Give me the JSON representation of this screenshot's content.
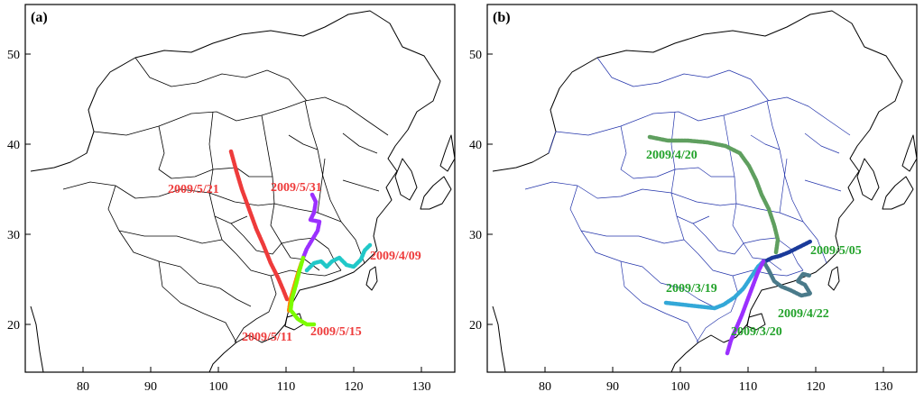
{
  "panels": [
    {
      "tag": "(a)",
      "xticks": [
        "80",
        "90",
        "100",
        "110",
        "120",
        "130"
      ],
      "yticks": [
        "50",
        "40",
        "30",
        "20"
      ],
      "boundary_color": "#000000",
      "tracks": [
        {
          "label": "2009/5/21",
          "color": "#ee3b3b"
        },
        {
          "label": "2009/5/31",
          "color": "#9b30ff"
        },
        {
          "label": "2009/4/09",
          "color": "#20c8c8"
        },
        {
          "label": "2009/5/11",
          "color": "#ff8a00"
        },
        {
          "label": "2009/5/15",
          "color": "#7cfc00"
        }
      ],
      "label_color": "#ee3b3b"
    },
    {
      "tag": "(b)",
      "xticks": [
        "80",
        "90",
        "100",
        "110",
        "120",
        "130"
      ],
      "yticks": [
        "50",
        "40",
        "30",
        "20"
      ],
      "boundary_color": "#2233aa",
      "tracks": [
        {
          "label": "2009/4/20",
          "color": "#5f9f5f"
        },
        {
          "label": "2009/5/05",
          "color": "#1a3a9a"
        },
        {
          "label": "2009/3/19",
          "color": "#33a8d8"
        },
        {
          "label": "2009/4/22",
          "color": "#4a7a8a"
        },
        {
          "label": "2009/3/20",
          "color": "#9b30ff"
        }
      ],
      "label_color": "#22a22a"
    }
  ]
}
